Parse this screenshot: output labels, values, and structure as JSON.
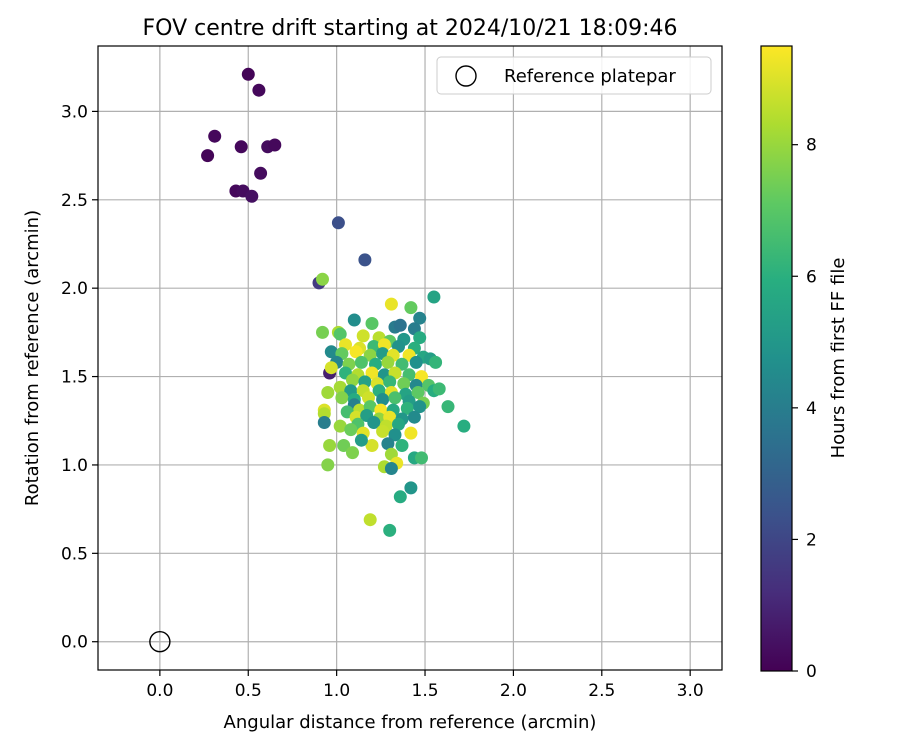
{
  "chart_data": {
    "type": "scatter",
    "title": "FOV centre drift starting at 2024/10/21 18:09:46",
    "xlabel": "Angular distance from reference (arcmin)",
    "ylabel": "Rotation from reference (arcmin)",
    "xlim": [
      -0.35,
      3.18
    ],
    "ylim": [
      -0.16,
      3.37
    ],
    "xticks": [
      "0.0",
      "0.5",
      "1.0",
      "1.5",
      "2.0",
      "2.5",
      "3.0"
    ],
    "yticks": [
      "0.0",
      "0.5",
      "1.0",
      "1.5",
      "2.0",
      "2.5",
      "3.0"
    ],
    "grid": true,
    "legend": {
      "placement": "top-right",
      "entries": [
        "Reference platepar"
      ]
    },
    "reference_point": {
      "x": 0.0,
      "y": 0.0
    },
    "colorbar": {
      "label": "Hours from first FF file",
      "colormap": "viridis",
      "range": [
        0,
        9.5
      ],
      "ticks": [
        "0",
        "2",
        "4",
        "6",
        "8"
      ]
    },
    "series": [
      {
        "values": [
          [
            0.5,
            3.21,
            0.1
          ],
          [
            0.56,
            3.12,
            0.2
          ],
          [
            0.31,
            2.86,
            0.2
          ],
          [
            0.27,
            2.75,
            0.1
          ],
          [
            0.46,
            2.8,
            0.2
          ],
          [
            0.61,
            2.8,
            0.3
          ],
          [
            0.65,
            2.81,
            0.2
          ],
          [
            0.57,
            2.65,
            0.3
          ],
          [
            0.43,
            2.55,
            0.2
          ],
          [
            0.47,
            2.55,
            0.3
          ],
          [
            0.52,
            2.52,
            0.4
          ],
          [
            1.01,
            2.37,
            2.3
          ],
          [
            1.16,
            2.16,
            2.4
          ],
          [
            0.9,
            2.03,
            1.6
          ],
          [
            0.92,
            2.05,
            7.8
          ],
          [
            0.96,
            1.52,
            0.8
          ],
          [
            1.55,
            1.95,
            5.5
          ],
          [
            1.31,
            1.91,
            9.2
          ],
          [
            1.42,
            1.89,
            7.2
          ],
          [
            1.47,
            1.83,
            4.2
          ],
          [
            1.1,
            1.82,
            4.6
          ],
          [
            1.2,
            1.8,
            7.0
          ],
          [
            1.33,
            1.78,
            3.9
          ],
          [
            1.36,
            1.79,
            3.6
          ],
          [
            1.44,
            1.77,
            4.0
          ],
          [
            0.92,
            1.75,
            7.5
          ],
          [
            1.01,
            1.75,
            8.3
          ],
          [
            1.02,
            1.74,
            6.9
          ],
          [
            1.15,
            1.73,
            8.8
          ],
          [
            1.24,
            1.72,
            8.5
          ],
          [
            1.3,
            1.7,
            7.1
          ],
          [
            1.38,
            1.71,
            5.0
          ],
          [
            1.47,
            1.72,
            5.8
          ],
          [
            1.05,
            1.68,
            9.2
          ],
          [
            1.13,
            1.66,
            9.0
          ],
          [
            1.21,
            1.67,
            6.4
          ],
          [
            1.27,
            1.68,
            9.3
          ],
          [
            1.35,
            1.67,
            4.8
          ],
          [
            1.44,
            1.66,
            6.0
          ],
          [
            0.97,
            1.64,
            4.5
          ],
          [
            1.03,
            1.63,
            7.2
          ],
          [
            1.11,
            1.64,
            9.4
          ],
          [
            1.19,
            1.62,
            7.8
          ],
          [
            1.26,
            1.63,
            5.2
          ],
          [
            1.32,
            1.62,
            9.1
          ],
          [
            1.41,
            1.62,
            9.3
          ],
          [
            1.49,
            1.61,
            5.6
          ],
          [
            1.53,
            1.6,
            5.3
          ],
          [
            1.0,
            1.58,
            4.3
          ],
          [
            1.07,
            1.57,
            7.6
          ],
          [
            1.14,
            1.58,
            6.8
          ],
          [
            1.22,
            1.57,
            5.9
          ],
          [
            1.29,
            1.58,
            8.0
          ],
          [
            1.37,
            1.57,
            6.5
          ],
          [
            1.45,
            1.58,
            4.7
          ],
          [
            1.56,
            1.58,
            6.2
          ],
          [
            0.97,
            1.55,
            8.9
          ],
          [
            1.05,
            1.52,
            6.1
          ],
          [
            1.12,
            1.51,
            8.4
          ],
          [
            1.2,
            1.52,
            9.3
          ],
          [
            1.27,
            1.51,
            4.9
          ],
          [
            1.33,
            1.52,
            8.7
          ],
          [
            1.41,
            1.51,
            6.6
          ],
          [
            1.48,
            1.5,
            9.4
          ],
          [
            1.09,
            1.48,
            7.9
          ],
          [
            1.16,
            1.47,
            5.4
          ],
          [
            1.23,
            1.46,
            9.0
          ],
          [
            1.3,
            1.47,
            6.3
          ],
          [
            1.38,
            1.46,
            7.4
          ],
          [
            1.45,
            1.45,
            4.4
          ],
          [
            1.52,
            1.45,
            6.9
          ],
          [
            1.02,
            1.44,
            8.2
          ],
          [
            1.08,
            1.42,
            5.1
          ],
          [
            1.15,
            1.42,
            8.6
          ],
          [
            1.24,
            1.42,
            6.0
          ],
          [
            1.31,
            1.41,
            9.1
          ],
          [
            1.39,
            1.4,
            5.5
          ],
          [
            1.46,
            1.41,
            7.1
          ],
          [
            1.55,
            1.42,
            5.9
          ],
          [
            1.58,
            1.43,
            6.4
          ],
          [
            0.95,
            1.41,
            8.1
          ],
          [
            1.03,
            1.38,
            7.7
          ],
          [
            1.1,
            1.37,
            5.8
          ],
          [
            1.18,
            1.38,
            8.8
          ],
          [
            1.26,
            1.37,
            4.6
          ],
          [
            1.33,
            1.38,
            6.7
          ],
          [
            1.41,
            1.36,
            5.2
          ],
          [
            1.49,
            1.35,
            7.5
          ],
          [
            1.1,
            1.34,
            4.1
          ],
          [
            1.13,
            1.31,
            8.5
          ],
          [
            1.19,
            1.33,
            7.0
          ],
          [
            1.25,
            1.31,
            9.4
          ],
          [
            1.32,
            1.31,
            5.7
          ],
          [
            1.4,
            1.32,
            6.1
          ],
          [
            1.47,
            1.33,
            4.8
          ],
          [
            1.63,
            1.33,
            6.3
          ],
          [
            0.93,
            1.31,
            9.0
          ],
          [
            0.93,
            1.29,
            8.4
          ],
          [
            1.06,
            1.3,
            6.6
          ],
          [
            1.11,
            1.27,
            8.9
          ],
          [
            1.17,
            1.28,
            5.3
          ],
          [
            1.24,
            1.26,
            7.9
          ],
          [
            1.3,
            1.27,
            9.2
          ],
          [
            1.37,
            1.26,
            5.0
          ],
          [
            1.44,
            1.27,
            4.5
          ],
          [
            0.93,
            1.24,
            4.0
          ],
          [
            1.02,
            1.22,
            8.0
          ],
          [
            1.12,
            1.23,
            6.8
          ],
          [
            1.21,
            1.24,
            4.9
          ],
          [
            1.28,
            1.22,
            8.6
          ],
          [
            1.35,
            1.23,
            5.6
          ],
          [
            1.72,
            1.22,
            5.9
          ],
          [
            1.08,
            1.2,
            7.3
          ],
          [
            1.15,
            1.18,
            9.1
          ],
          [
            1.26,
            1.19,
            8.7
          ],
          [
            1.33,
            1.17,
            4.7
          ],
          [
            1.42,
            1.18,
            9.3
          ],
          [
            0.96,
            1.11,
            8.0
          ],
          [
            1.04,
            1.11,
            7.4
          ],
          [
            1.2,
            1.11,
            8.9
          ],
          [
            1.29,
            1.12,
            4.2
          ],
          [
            1.37,
            1.11,
            6.1
          ],
          [
            1.14,
            1.14,
            5.2
          ],
          [
            1.09,
            1.07,
            7.6
          ],
          [
            1.31,
            1.06,
            8.1
          ],
          [
            1.44,
            1.04,
            5.7
          ],
          [
            1.48,
            1.04,
            6.5
          ],
          [
            1.34,
            1.01,
            9.2
          ],
          [
            0.95,
            1.0,
            7.7
          ],
          [
            1.27,
            0.99,
            8.3
          ],
          [
            1.31,
            0.98,
            4.3
          ],
          [
            1.36,
            0.82,
            5.8
          ],
          [
            1.42,
            0.87,
            4.9
          ],
          [
            1.19,
            0.69,
            8.6
          ],
          [
            1.3,
            0.63,
            6.0
          ]
        ]
      }
    ]
  }
}
